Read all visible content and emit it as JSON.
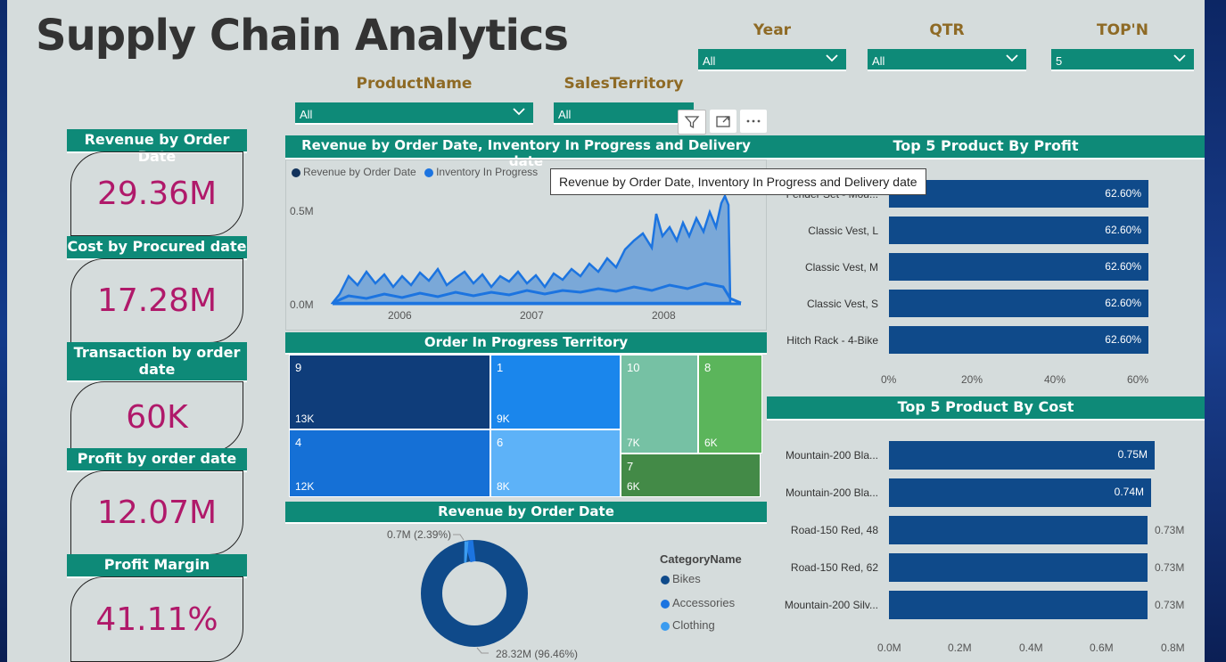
{
  "title": "Supply Chain Analytics",
  "slicers": {
    "year": {
      "label": "Year",
      "value": "All"
    },
    "qtr": {
      "label": "QTR",
      "value": "All"
    },
    "topn": {
      "label": "TOP'N",
      "value": "5"
    },
    "product": {
      "label": "ProductName",
      "value": "All"
    },
    "territory": {
      "label": "SalesTerritory",
      "value": "All"
    }
  },
  "kpis": [
    {
      "label": "Revenue by Order Date",
      "value": "29.36M"
    },
    {
      "label": "Cost by Procured date",
      "value": "17.28M"
    },
    {
      "label": "Transaction by order date",
      "value": "60K"
    },
    {
      "label": "Profit by order date",
      "value": "12.07M"
    },
    {
      "label": "Profit Margin",
      "value": "41.11%"
    }
  ],
  "line_chart": {
    "title": "Revenue by Order Date, Inventory In Progress and Delivery date",
    "legend": [
      "Revenue by Order Date",
      "Inventory In Progress"
    ],
    "y_ticks": [
      "0.5M",
      "0.0M"
    ],
    "x_ticks": [
      "2006",
      "2007",
      "2008"
    ],
    "tooltip": "Revenue by Order Date, Inventory In Progress and Delivery date"
  },
  "treemap": {
    "title": "Order In Progress Territory",
    "cells": [
      {
        "name": "9",
        "value": "13K"
      },
      {
        "name": "1",
        "value": "9K"
      },
      {
        "name": "10",
        "value": "7K"
      },
      {
        "name": "8",
        "value": "6K"
      },
      {
        "name": "4",
        "value": "12K"
      },
      {
        "name": "6",
        "value": "8K"
      },
      {
        "name": "7",
        "value": "6K"
      }
    ]
  },
  "donut": {
    "title": "Revenue by Order Date",
    "legend_title": "CategoryName",
    "legend": [
      "Bikes",
      "Accessories",
      "Clothing"
    ],
    "label_small": "0.7M (2.39%)",
    "label_large": "28.32M (96.46%)"
  },
  "profit_bars": {
    "title": "Top 5 Product By Profit",
    "products": [
      "Fender Set - Mou...",
      "Classic Vest, L",
      "Classic Vest, M",
      "Classic Vest, S",
      "Hitch Rack - 4-Bike"
    ],
    "labels": [
      "62.60%",
      "62.60%",
      "62.60%",
      "62.60%",
      "62.60%"
    ],
    "x_ticks": [
      "0%",
      "20%",
      "40%",
      "60%"
    ]
  },
  "cost_bars": {
    "title": "Top 5 Product By Cost",
    "products": [
      "Mountain-200 Bla...",
      "Mountain-200 Bla...",
      "Road-150 Red, 48",
      "Road-150 Red, 62",
      "Mountain-200 Silv..."
    ],
    "labels": [
      "0.75M",
      "0.74M",
      "0.73M",
      "0.73M",
      "0.73M"
    ],
    "x_ticks": [
      "0.0M",
      "0.2M",
      "0.4M",
      "0.6M",
      "0.8M"
    ]
  },
  "chart_data": [
    {
      "type": "bar",
      "title": "Top 5 Product By Profit",
      "categories": [
        "Fender Set - Mou...",
        "Classic Vest, L",
        "Classic Vest, M",
        "Classic Vest, S",
        "Hitch Rack - 4-Bike"
      ],
      "values": [
        62.6,
        62.6,
        62.6,
        62.6,
        62.6
      ],
      "xlim": [
        0,
        65
      ]
    },
    {
      "type": "bar",
      "title": "Top 5 Product By Cost",
      "categories": [
        "Mountain-200 Bla...",
        "Mountain-200 Bla...",
        "Road-150 Red, 48",
        "Road-150 Red, 62",
        "Mountain-200 Silv..."
      ],
      "values": [
        0.75,
        0.74,
        0.73,
        0.73,
        0.73
      ],
      "xlim": [
        0,
        0.8
      ]
    },
    {
      "type": "pie",
      "title": "Revenue by Order Date",
      "categories": [
        "Bikes",
        "Accessories",
        "Clothing"
      ],
      "values": [
        28.32,
        0.7,
        0.34
      ]
    }
  ],
  "colors": {
    "accent": "#0e8a78",
    "bar": "#0f4a8a",
    "kpi": "#b0196a",
    "slicer_label": "#8e6a25"
  }
}
